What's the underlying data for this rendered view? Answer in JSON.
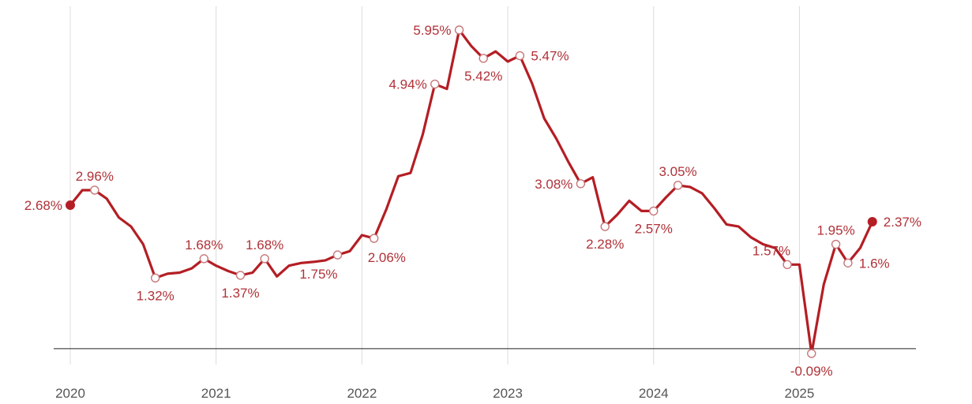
{
  "chart_data": {
    "type": "line",
    "title": "",
    "xlabel": "",
    "ylabel": "",
    "x_tick_labels": [
      "2020",
      "2021",
      "2022",
      "2023",
      "2024",
      "2025"
    ],
    "x_tick_values": [
      2020,
      2021,
      2022,
      2023,
      2024,
      2025
    ],
    "xlim": [
      2020,
      2025.55
    ],
    "ylim": [
      -0.09,
      5.95
    ],
    "grid": {
      "vertical": true,
      "horizontal": false
    },
    "baseline_y": 0,
    "colors": {
      "line": "#b41e24",
      "label": "#b03238",
      "grid": "#dcdcdc",
      "axis": "#222222"
    },
    "series": [
      {
        "x": [
          2020.0,
          2020.083,
          2020.167,
          2020.25,
          2020.333,
          2020.417,
          2020.5,
          2020.583,
          2020.667,
          2020.75,
          2020.833,
          2020.917,
          2021.0,
          2021.083,
          2021.167,
          2021.25,
          2021.333,
          2021.417,
          2021.5,
          2021.583,
          2021.667,
          2021.75,
          2021.833,
          2021.917,
          2022.0,
          2022.083,
          2022.167,
          2022.25,
          2022.333,
          2022.417,
          2022.5,
          2022.583,
          2022.667,
          2022.75,
          2022.833,
          2022.917,
          2023.0,
          2023.083,
          2023.167,
          2023.25,
          2023.333,
          2023.417,
          2023.5,
          2023.583,
          2023.667,
          2023.75,
          2023.833,
          2023.917,
          2024.0,
          2024.083,
          2024.167,
          2024.25,
          2024.333,
          2024.417,
          2024.5,
          2024.583,
          2024.667,
          2024.75,
          2024.833,
          2024.917,
          2025.0,
          2025.083,
          2025.167,
          2025.25,
          2025.333,
          2025.417,
          2025.5
        ],
        "y": [
          2.68,
          2.96,
          2.96,
          2.8,
          2.45,
          2.28,
          1.95,
          1.32,
          1.4,
          1.42,
          1.5,
          1.68,
          1.55,
          1.45,
          1.37,
          1.42,
          1.68,
          1.35,
          1.55,
          1.6,
          1.62,
          1.65,
          1.75,
          1.82,
          2.12,
          2.06,
          2.6,
          3.22,
          3.28,
          4.0,
          4.94,
          4.85,
          5.95,
          5.65,
          5.42,
          5.55,
          5.36,
          5.47,
          4.95,
          4.3,
          3.92,
          3.48,
          3.08,
          3.2,
          2.28,
          2.5,
          2.76,
          2.57,
          2.57,
          2.82,
          3.05,
          3.02,
          2.9,
          2.62,
          2.32,
          2.28,
          2.08,
          1.95,
          1.88,
          1.57,
          1.57,
          -0.09,
          1.2,
          1.95,
          1.6,
          1.88,
          2.37
        ]
      }
    ],
    "annotations": [
      {
        "x": 2020.0,
        "y": 2.68,
        "text": "2.68%",
        "pos": "left",
        "marker": "filled"
      },
      {
        "x": 2020.167,
        "y": 2.96,
        "text": "2.96%",
        "pos": "above",
        "marker": "open"
      },
      {
        "x": 2020.583,
        "y": 1.32,
        "text": "1.32%",
        "pos": "below",
        "marker": "open"
      },
      {
        "x": 2020.917,
        "y": 1.68,
        "text": "1.68%",
        "pos": "above",
        "marker": "open"
      },
      {
        "x": 2021.167,
        "y": 1.37,
        "text": "1.37%",
        "pos": "below",
        "marker": "open"
      },
      {
        "x": 2021.333,
        "y": 1.68,
        "text": "1.68%",
        "pos": "above",
        "marker": "open"
      },
      {
        "x": 2021.833,
        "y": 1.75,
        "text": "1.75%",
        "pos": "below-left",
        "marker": "open"
      },
      {
        "x": 2022.083,
        "y": 2.06,
        "text": "2.06%",
        "pos": "below-right",
        "marker": "open"
      },
      {
        "x": 2022.5,
        "y": 4.94,
        "text": "4.94%",
        "pos": "left",
        "marker": "open"
      },
      {
        "x": 2022.667,
        "y": 5.95,
        "text": "5.95%",
        "pos": "left",
        "marker": "open"
      },
      {
        "x": 2022.833,
        "y": 5.42,
        "text": "5.42%",
        "pos": "below",
        "marker": "open"
      },
      {
        "x": 2023.083,
        "y": 5.47,
        "text": "5.47%",
        "pos": "right",
        "marker": "open"
      },
      {
        "x": 2023.5,
        "y": 3.08,
        "text": "3.08%",
        "pos": "left",
        "marker": "open"
      },
      {
        "x": 2023.667,
        "y": 2.28,
        "text": "2.28%",
        "pos": "below",
        "marker": "open"
      },
      {
        "x": 2024.0,
        "y": 2.57,
        "text": "2.57%",
        "pos": "below",
        "marker": "open"
      },
      {
        "x": 2024.167,
        "y": 3.05,
        "text": "3.05%",
        "pos": "above",
        "marker": "open"
      },
      {
        "x": 2024.917,
        "y": 1.57,
        "text": "1.57%",
        "pos": "above-left",
        "marker": "open"
      },
      {
        "x": 2025.083,
        "y": -0.09,
        "text": "-0.09%",
        "pos": "below",
        "marker": "open"
      },
      {
        "x": 2025.25,
        "y": 1.95,
        "text": "1.95%",
        "pos": "above",
        "marker": "open"
      },
      {
        "x": 2025.333,
        "y": 1.6,
        "text": "1.6%",
        "pos": "right",
        "marker": "open"
      },
      {
        "x": 2025.5,
        "y": 2.37,
        "text": "2.37%",
        "pos": "right",
        "marker": "filled"
      }
    ]
  }
}
